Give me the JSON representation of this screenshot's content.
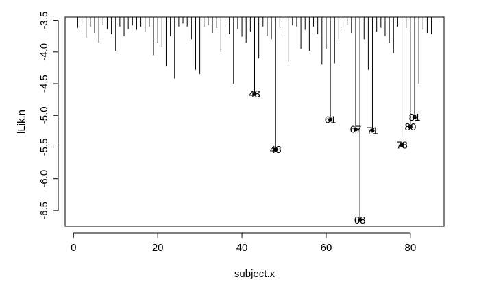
{
  "chart_data": {
    "type": "needle",
    "xlabel": "subject.x",
    "ylabel": "lLik.n",
    "xlim": [
      -2,
      88
    ],
    "ylim": [
      -6.75,
      -3.45
    ],
    "baseline": -3.45,
    "x_ticks": [
      0,
      20,
      40,
      60,
      80
    ],
    "x_tick_labels": [
      "0",
      "20",
      "40",
      "60",
      "80"
    ],
    "y_ticks": [
      -3.5,
      -4.0,
      -4.5,
      -5.0,
      -5.5,
      -6.0,
      -6.5
    ],
    "y_tick_labels": [
      "-3.5",
      "-4.0",
      "-4.5",
      "-5.0",
      "-5.5",
      "-6.0",
      "-6.5"
    ],
    "grid": false,
    "x": [
      1,
      2,
      3,
      4,
      5,
      6,
      7,
      8,
      9,
      10,
      11,
      12,
      13,
      14,
      15,
      16,
      17,
      18,
      19,
      20,
      21,
      22,
      23,
      24,
      25,
      26,
      27,
      28,
      29,
      30,
      31,
      32,
      33,
      34,
      35,
      36,
      37,
      38,
      39,
      40,
      41,
      42,
      43,
      44,
      45,
      46,
      47,
      48,
      49,
      50,
      51,
      52,
      53,
      54,
      55,
      56,
      57,
      58,
      59,
      60,
      61,
      62,
      63,
      64,
      65,
      66,
      67,
      68,
      69,
      70,
      71,
      72,
      73,
      74,
      75,
      76,
      77,
      78,
      79,
      80,
      81,
      82,
      83,
      84,
      85
    ],
    "y": [
      -3.62,
      -3.55,
      -3.78,
      -3.6,
      -3.7,
      -3.85,
      -3.58,
      -3.64,
      -3.72,
      -3.98,
      -3.6,
      -3.75,
      -3.64,
      -3.58,
      -3.65,
      -3.6,
      -3.68,
      -3.6,
      -4.05,
      -3.86,
      -3.92,
      -4.22,
      -3.75,
      -4.42,
      -3.6,
      -3.55,
      -3.6,
      -3.8,
      -4.28,
      -4.35,
      -3.6,
      -3.58,
      -3.7,
      -3.62,
      -4.0,
      -3.6,
      -3.72,
      -4.5,
      -3.64,
      -3.76,
      -3.85,
      -3.68,
      -4.66,
      -4.1,
      -3.6,
      -3.75,
      -3.8,
      -5.54,
      -3.62,
      -3.75,
      -4.15,
      -3.58,
      -3.6,
      -3.95,
      -3.65,
      -3.98,
      -3.6,
      -3.72,
      -4.2,
      -3.95,
      -5.07,
      -4.18,
      -3.8,
      -3.62,
      -3.58,
      -3.7,
      -5.22,
      -6.65,
      -3.8,
      -4.28,
      -5.24,
      -3.68,
      -3.62,
      -3.75,
      -3.86,
      -4.02,
      -3.6,
      -5.47,
      -3.62,
      -5.18,
      -5.03,
      -4.5,
      -3.65,
      -3.7,
      -3.72
    ],
    "labeled_points": [
      {
        "x": 43,
        "y": -4.66,
        "label": "43"
      },
      {
        "x": 48,
        "y": -5.54,
        "label": "48"
      },
      {
        "x": 61,
        "y": -5.07,
        "label": "61"
      },
      {
        "x": 67,
        "y": -5.22,
        "label": "67"
      },
      {
        "x": 68,
        "y": -6.65,
        "label": "68"
      },
      {
        "x": 71,
        "y": -5.24,
        "label": "71"
      },
      {
        "x": 78,
        "y": -5.47,
        "label": "78"
      },
      {
        "x": 80,
        "y": -5.18,
        "label": "80"
      },
      {
        "x": 81,
        "y": -5.03,
        "label": "81"
      }
    ],
    "colors": {
      "line": "#000000",
      "background": "#ffffff"
    }
  }
}
